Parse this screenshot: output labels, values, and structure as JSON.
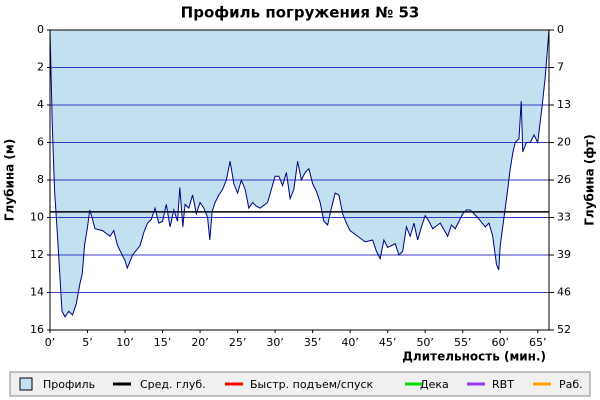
{
  "chart_data": {
    "type": "area",
    "title": "Профиль погружения № 53",
    "ylabel": "Глубина (м)",
    "y2label": "Глубина (фт)",
    "xlabel": "Длительность (мин.)",
    "xlim": [
      0,
      66.5
    ],
    "ylim": [
      16,
      0
    ],
    "y2lim": [
      52.49,
      0
    ],
    "xticks": [
      {
        "value": 0,
        "label": "0’"
      },
      {
        "value": 5,
        "label": "5’"
      },
      {
        "value": 10,
        "label": "10’"
      },
      {
        "value": 15,
        "label": "15’"
      },
      {
        "value": 20,
        "label": "20’"
      },
      {
        "value": 25,
        "label": "25’"
      },
      {
        "value": 30,
        "label": "30’"
      },
      {
        "value": 35,
        "label": "35’"
      },
      {
        "value": 40,
        "label": "40’"
      },
      {
        "value": 45,
        "label": "45’"
      },
      {
        "value": 50,
        "label": "50’"
      },
      {
        "value": 55,
        "label": "55’"
      },
      {
        "value": 60,
        "label": "60’"
      },
      {
        "value": 65,
        "label": "65’"
      }
    ],
    "yticks": [
      0,
      2,
      4,
      6,
      8,
      10,
      12,
      14,
      16
    ],
    "y2ticks": [
      0,
      {
        "value": 6.56,
        "label": "7"
      },
      {
        "value": 13.12,
        "label": "13"
      },
      {
        "value": 19.69,
        "label": "20"
      },
      {
        "value": 26.25,
        "label": "26"
      },
      {
        "value": 32.81,
        "label": "33"
      },
      {
        "value": 39.37,
        "label": "39"
      },
      {
        "value": 45.93,
        "label": "46"
      },
      {
        "value": 52.49,
        "label": "52"
      }
    ],
    "grid": true,
    "avg_depth": 9.7,
    "series": [
      {
        "name": "Профиль",
        "color": "#c2e0f0",
        "line_color": "#000080",
        "x": [
          0,
          0.3,
          0.6,
          1,
          1.3,
          1.6,
          2,
          2.5,
          3,
          3.5,
          4,
          4.3,
          4.6,
          5,
          5.3,
          5.6,
          6,
          7,
          8,
          8.5,
          9,
          10,
          10.3,
          11,
          12,
          12.5,
          13,
          13.5,
          14,
          14.5,
          15,
          15.5,
          16,
          16.5,
          17,
          17.3,
          17.7,
          18,
          18.5,
          19,
          19.5,
          20,
          20.5,
          21,
          21.3,
          21.6,
          22,
          22.5,
          23,
          23.5,
          24,
          24.5,
          25,
          25.5,
          26,
          26.5,
          27,
          27.5,
          28,
          29,
          29.5,
          30,
          30.5,
          31,
          31.5,
          32,
          32.5,
          33,
          33.5,
          34,
          34.5,
          35,
          35.5,
          36,
          36.5,
          37,
          37.5,
          38,
          38.5,
          39,
          39.5,
          40,
          41,
          42,
          43,
          43.5,
          44,
          44.5,
          45,
          46,
          46.5,
          47,
          47.5,
          48,
          48.5,
          49,
          49.5,
          50,
          50.5,
          51,
          52,
          53,
          53.5,
          54,
          55,
          55.5,
          56,
          57,
          58,
          58.5,
          59,
          59.5,
          59.8,
          60,
          60.5,
          61,
          61.3,
          61.7,
          62,
          62.5,
          62.8,
          63,
          63.5,
          64,
          64.5,
          65,
          65.3,
          65.6,
          66,
          66.3,
          66.5
        ],
        "values": [
          0,
          5,
          8.5,
          11,
          13,
          15,
          15.3,
          15,
          15.2,
          14.6,
          13.5,
          13,
          11.5,
          10.5,
          9.6,
          10,
          10.6,
          10.7,
          11,
          10.7,
          11.5,
          12.3,
          12.7,
          12,
          11.5,
          10.8,
          10.3,
          10.1,
          9.5,
          10.3,
          10.2,
          9.3,
          10.5,
          9.6,
          10.2,
          8.4,
          10.5,
          9.3,
          9.5,
          8.8,
          9.8,
          9.2,
          9.5,
          10,
          11.2,
          9.7,
          9.2,
          8.8,
          8.5,
          8,
          7,
          8.2,
          8.7,
          8,
          8.5,
          9.5,
          9.2,
          9.4,
          9.5,
          9.2,
          8.5,
          7.8,
          7.8,
          8.3,
          7.6,
          9,
          8.5,
          7,
          8,
          7.6,
          7.4,
          8.2,
          8.6,
          9.2,
          10.2,
          10.4,
          9.5,
          8.7,
          8.8,
          9.8,
          10.3,
          10.7,
          11,
          11.3,
          11.2,
          11.8,
          12.2,
          11.2,
          11.6,
          11.4,
          12,
          11.8,
          10.5,
          11,
          10.3,
          11.2,
          10.5,
          9.9,
          10.2,
          10.6,
          10.3,
          11,
          10.4,
          10.6,
          9.8,
          9.6,
          9.6,
          10,
          10.5,
          10.3,
          11,
          12.5,
          12.8,
          11.5,
          10,
          8.5,
          7.5,
          6.5,
          6,
          5.8,
          3.8,
          6.5,
          6,
          6,
          5.6,
          6,
          5,
          4,
          2.5,
          1,
          0
        ]
      }
    ],
    "legend": [
      {
        "name": "Профиль",
        "color": "#c2e0f0"
      },
      {
        "name": "Сред. глуб.",
        "color": "#000000"
      },
      {
        "name": "Быстр. подъем/спуск",
        "color": "#ff0000"
      },
      {
        "name": "Дека",
        "color": "#00e000"
      },
      {
        "name": "RBT",
        "color": "#9933ff"
      },
      {
        "name": "Раб.",
        "color": "#ffa000"
      }
    ]
  }
}
